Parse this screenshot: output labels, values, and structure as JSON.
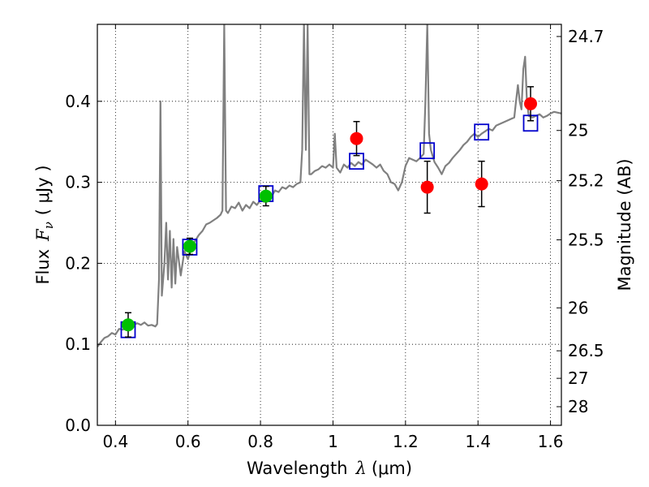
{
  "chart_data": {
    "type": "scatter",
    "title": "",
    "xlabel": "Wavelength",
    "xlabel_symbol": "λ",
    "xlabel_unit": "(μm)",
    "ylabel": "Flux",
    "ylabel_symbol": "F",
    "ylabel_subscript": "ν",
    "ylabel_unit": "( μJy )",
    "ylabel_right": "Magnitude (AB)",
    "xlim": [
      0.35,
      1.63
    ],
    "ylim": [
      0.0,
      0.495
    ],
    "grid": true,
    "x_ticks": [
      0.4,
      0.6,
      0.8,
      1.0,
      1.2,
      1.4,
      1.6
    ],
    "x_tick_labels": [
      "0.4",
      "0.6",
      "0.8",
      "1",
      "1.2",
      "1.4",
      "1.6"
    ],
    "y_ticks": [
      0.0,
      0.1,
      0.2,
      0.3,
      0.4
    ],
    "y_tick_labels": [
      "0.0",
      "0.1",
      "0.2",
      "0.3",
      "0.4"
    ],
    "right_ticks": [
      {
        "label": "24.7",
        "flux": 0.48
      },
      {
        "label": "25",
        "flux": 0.364
      },
      {
        "label": "25.2",
        "flux": 0.302
      },
      {
        "label": "25.5",
        "flux": 0.229
      },
      {
        "label": "26",
        "flux": 0.145
      },
      {
        "label": "26.5",
        "flux": 0.092
      },
      {
        "label": "27",
        "flux": 0.058
      },
      {
        "label": "28",
        "flux": 0.023
      }
    ],
    "series": [
      {
        "kind": "spectrum",
        "color": "#808080",
        "points": [
          [
            0.35,
            0.097
          ],
          [
            0.36,
            0.103
          ],
          [
            0.37,
            0.108
          ],
          [
            0.38,
            0.11
          ],
          [
            0.39,
            0.114
          ],
          [
            0.4,
            0.112
          ],
          [
            0.41,
            0.119
          ],
          [
            0.42,
            0.118
          ],
          [
            0.43,
            0.12
          ],
          [
            0.44,
            0.119
          ],
          [
            0.45,
            0.124
          ],
          [
            0.46,
            0.126
          ],
          [
            0.47,
            0.124
          ],
          [
            0.48,
            0.127
          ],
          [
            0.49,
            0.123
          ],
          [
            0.5,
            0.124
          ],
          [
            0.51,
            0.122
          ],
          [
            0.515,
            0.125
          ],
          [
            0.52,
            0.18
          ],
          [
            0.524,
            0.4
          ],
          [
            0.528,
            0.16
          ],
          [
            0.535,
            0.2
          ],
          [
            0.54,
            0.25
          ],
          [
            0.545,
            0.18
          ],
          [
            0.55,
            0.24
          ],
          [
            0.555,
            0.17
          ],
          [
            0.56,
            0.23
          ],
          [
            0.565,
            0.175
          ],
          [
            0.57,
            0.22
          ],
          [
            0.58,
            0.185
          ],
          [
            0.59,
            0.215
          ],
          [
            0.6,
            0.205
          ],
          [
            0.61,
            0.222
          ],
          [
            0.62,
            0.228
          ],
          [
            0.63,
            0.235
          ],
          [
            0.64,
            0.24
          ],
          [
            0.65,
            0.248
          ],
          [
            0.66,
            0.25
          ],
          [
            0.67,
            0.253
          ],
          [
            0.68,
            0.256
          ],
          [
            0.69,
            0.26
          ],
          [
            0.695,
            0.265
          ],
          [
            0.7,
            0.495
          ],
          [
            0.705,
            0.265
          ],
          [
            0.71,
            0.262
          ],
          [
            0.72,
            0.27
          ],
          [
            0.73,
            0.268
          ],
          [
            0.74,
            0.275
          ],
          [
            0.75,
            0.265
          ],
          [
            0.76,
            0.272
          ],
          [
            0.77,
            0.268
          ],
          [
            0.78,
            0.276
          ],
          [
            0.79,
            0.272
          ],
          [
            0.8,
            0.278
          ],
          [
            0.81,
            0.276
          ],
          [
            0.82,
            0.284
          ],
          [
            0.83,
            0.282
          ],
          [
            0.84,
            0.29
          ],
          [
            0.85,
            0.288
          ],
          [
            0.86,
            0.294
          ],
          [
            0.87,
            0.292
          ],
          [
            0.88,
            0.296
          ],
          [
            0.89,
            0.294
          ],
          [
            0.9,
            0.298
          ],
          [
            0.91,
            0.3
          ],
          [
            0.915,
            0.34
          ],
          [
            0.92,
            0.495
          ],
          [
            0.925,
            0.34
          ],
          [
            0.93,
            0.495
          ],
          [
            0.935,
            0.31
          ],
          [
            0.94,
            0.31
          ],
          [
            0.95,
            0.314
          ],
          [
            0.96,
            0.316
          ],
          [
            0.97,
            0.32
          ],
          [
            0.98,
            0.318
          ],
          [
            0.99,
            0.322
          ],
          [
            1.0,
            0.318
          ],
          [
            1.005,
            0.36
          ],
          [
            1.01,
            0.318
          ],
          [
            1.02,
            0.312
          ],
          [
            1.03,
            0.322
          ],
          [
            1.04,
            0.318
          ],
          [
            1.05,
            0.324
          ],
          [
            1.06,
            0.32
          ],
          [
            1.07,
            0.325
          ],
          [
            1.08,
            0.322
          ],
          [
            1.09,
            0.328
          ],
          [
            1.1,
            0.325
          ],
          [
            1.11,
            0.322
          ],
          [
            1.12,
            0.318
          ],
          [
            1.13,
            0.322
          ],
          [
            1.14,
            0.314
          ],
          [
            1.15,
            0.31
          ],
          [
            1.16,
            0.3
          ],
          [
            1.17,
            0.298
          ],
          [
            1.18,
            0.29
          ],
          [
            1.19,
            0.3
          ],
          [
            1.2,
            0.32
          ],
          [
            1.21,
            0.33
          ],
          [
            1.22,
            0.328
          ],
          [
            1.23,
            0.326
          ],
          [
            1.24,
            0.33
          ],
          [
            1.25,
            0.335
          ],
          [
            1.255,
            0.4
          ],
          [
            1.26,
            0.495
          ],
          [
            1.265,
            0.36
          ],
          [
            1.27,
            0.34
          ],
          [
            1.28,
            0.325
          ],
          [
            1.29,
            0.318
          ],
          [
            1.3,
            0.31
          ],
          [
            1.31,
            0.32
          ],
          [
            1.32,
            0.324
          ],
          [
            1.33,
            0.33
          ],
          [
            1.34,
            0.335
          ],
          [
            1.35,
            0.34
          ],
          [
            1.36,
            0.346
          ],
          [
            1.37,
            0.35
          ],
          [
            1.38,
            0.356
          ],
          [
            1.39,
            0.36
          ],
          [
            1.4,
            0.356
          ],
          [
            1.41,
            0.36
          ],
          [
            1.42,
            0.363
          ],
          [
            1.43,
            0.366
          ],
          [
            1.44,
            0.364
          ],
          [
            1.45,
            0.37
          ],
          [
            1.46,
            0.372
          ],
          [
            1.47,
            0.374
          ],
          [
            1.48,
            0.376
          ],
          [
            1.49,
            0.378
          ],
          [
            1.5,
            0.38
          ],
          [
            1.505,
            0.4
          ],
          [
            1.51,
            0.42
          ],
          [
            1.515,
            0.4
          ],
          [
            1.52,
            0.39
          ],
          [
            1.525,
            0.44
          ],
          [
            1.53,
            0.455
          ],
          [
            1.535,
            0.4
          ],
          [
            1.54,
            0.382
          ],
          [
            1.55,
            0.38
          ],
          [
            1.56,
            0.382
          ],
          [
            1.57,
            0.384
          ],
          [
            1.58,
            0.38
          ],
          [
            1.59,
            0.382
          ],
          [
            1.6,
            0.385
          ],
          [
            1.61,
            0.387
          ],
          [
            1.62,
            0.386
          ],
          [
            1.63,
            0.385
          ]
        ]
      },
      {
        "kind": "model",
        "marker": "open-square",
        "color": "#0000cc",
        "points": [
          [
            0.435,
            0.118
          ],
          [
            0.605,
            0.22
          ],
          [
            0.815,
            0.286
          ],
          [
            1.065,
            0.326
          ],
          [
            1.26,
            0.339
          ],
          [
            1.41,
            0.362
          ],
          [
            1.545,
            0.373
          ]
        ]
      },
      {
        "kind": "observed",
        "marker": "filled-circle",
        "color": "#00c000",
        "points": [
          {
            "x": 0.435,
            "y": 0.124,
            "err": 0.015
          },
          {
            "x": 0.605,
            "y": 0.221,
            "err": 0.01
          },
          {
            "x": 0.815,
            "y": 0.283,
            "err": 0.012
          }
        ]
      },
      {
        "kind": "observed",
        "marker": "filled-circle",
        "color": "#ff0000",
        "points": [
          {
            "x": 1.065,
            "y": 0.354,
            "err": 0.021
          },
          {
            "x": 1.26,
            "y": 0.294,
            "err": 0.032
          },
          {
            "x": 1.41,
            "y": 0.298,
            "err": 0.028
          },
          {
            "x": 1.545,
            "y": 0.397,
            "err": 0.021
          }
        ]
      }
    ]
  }
}
